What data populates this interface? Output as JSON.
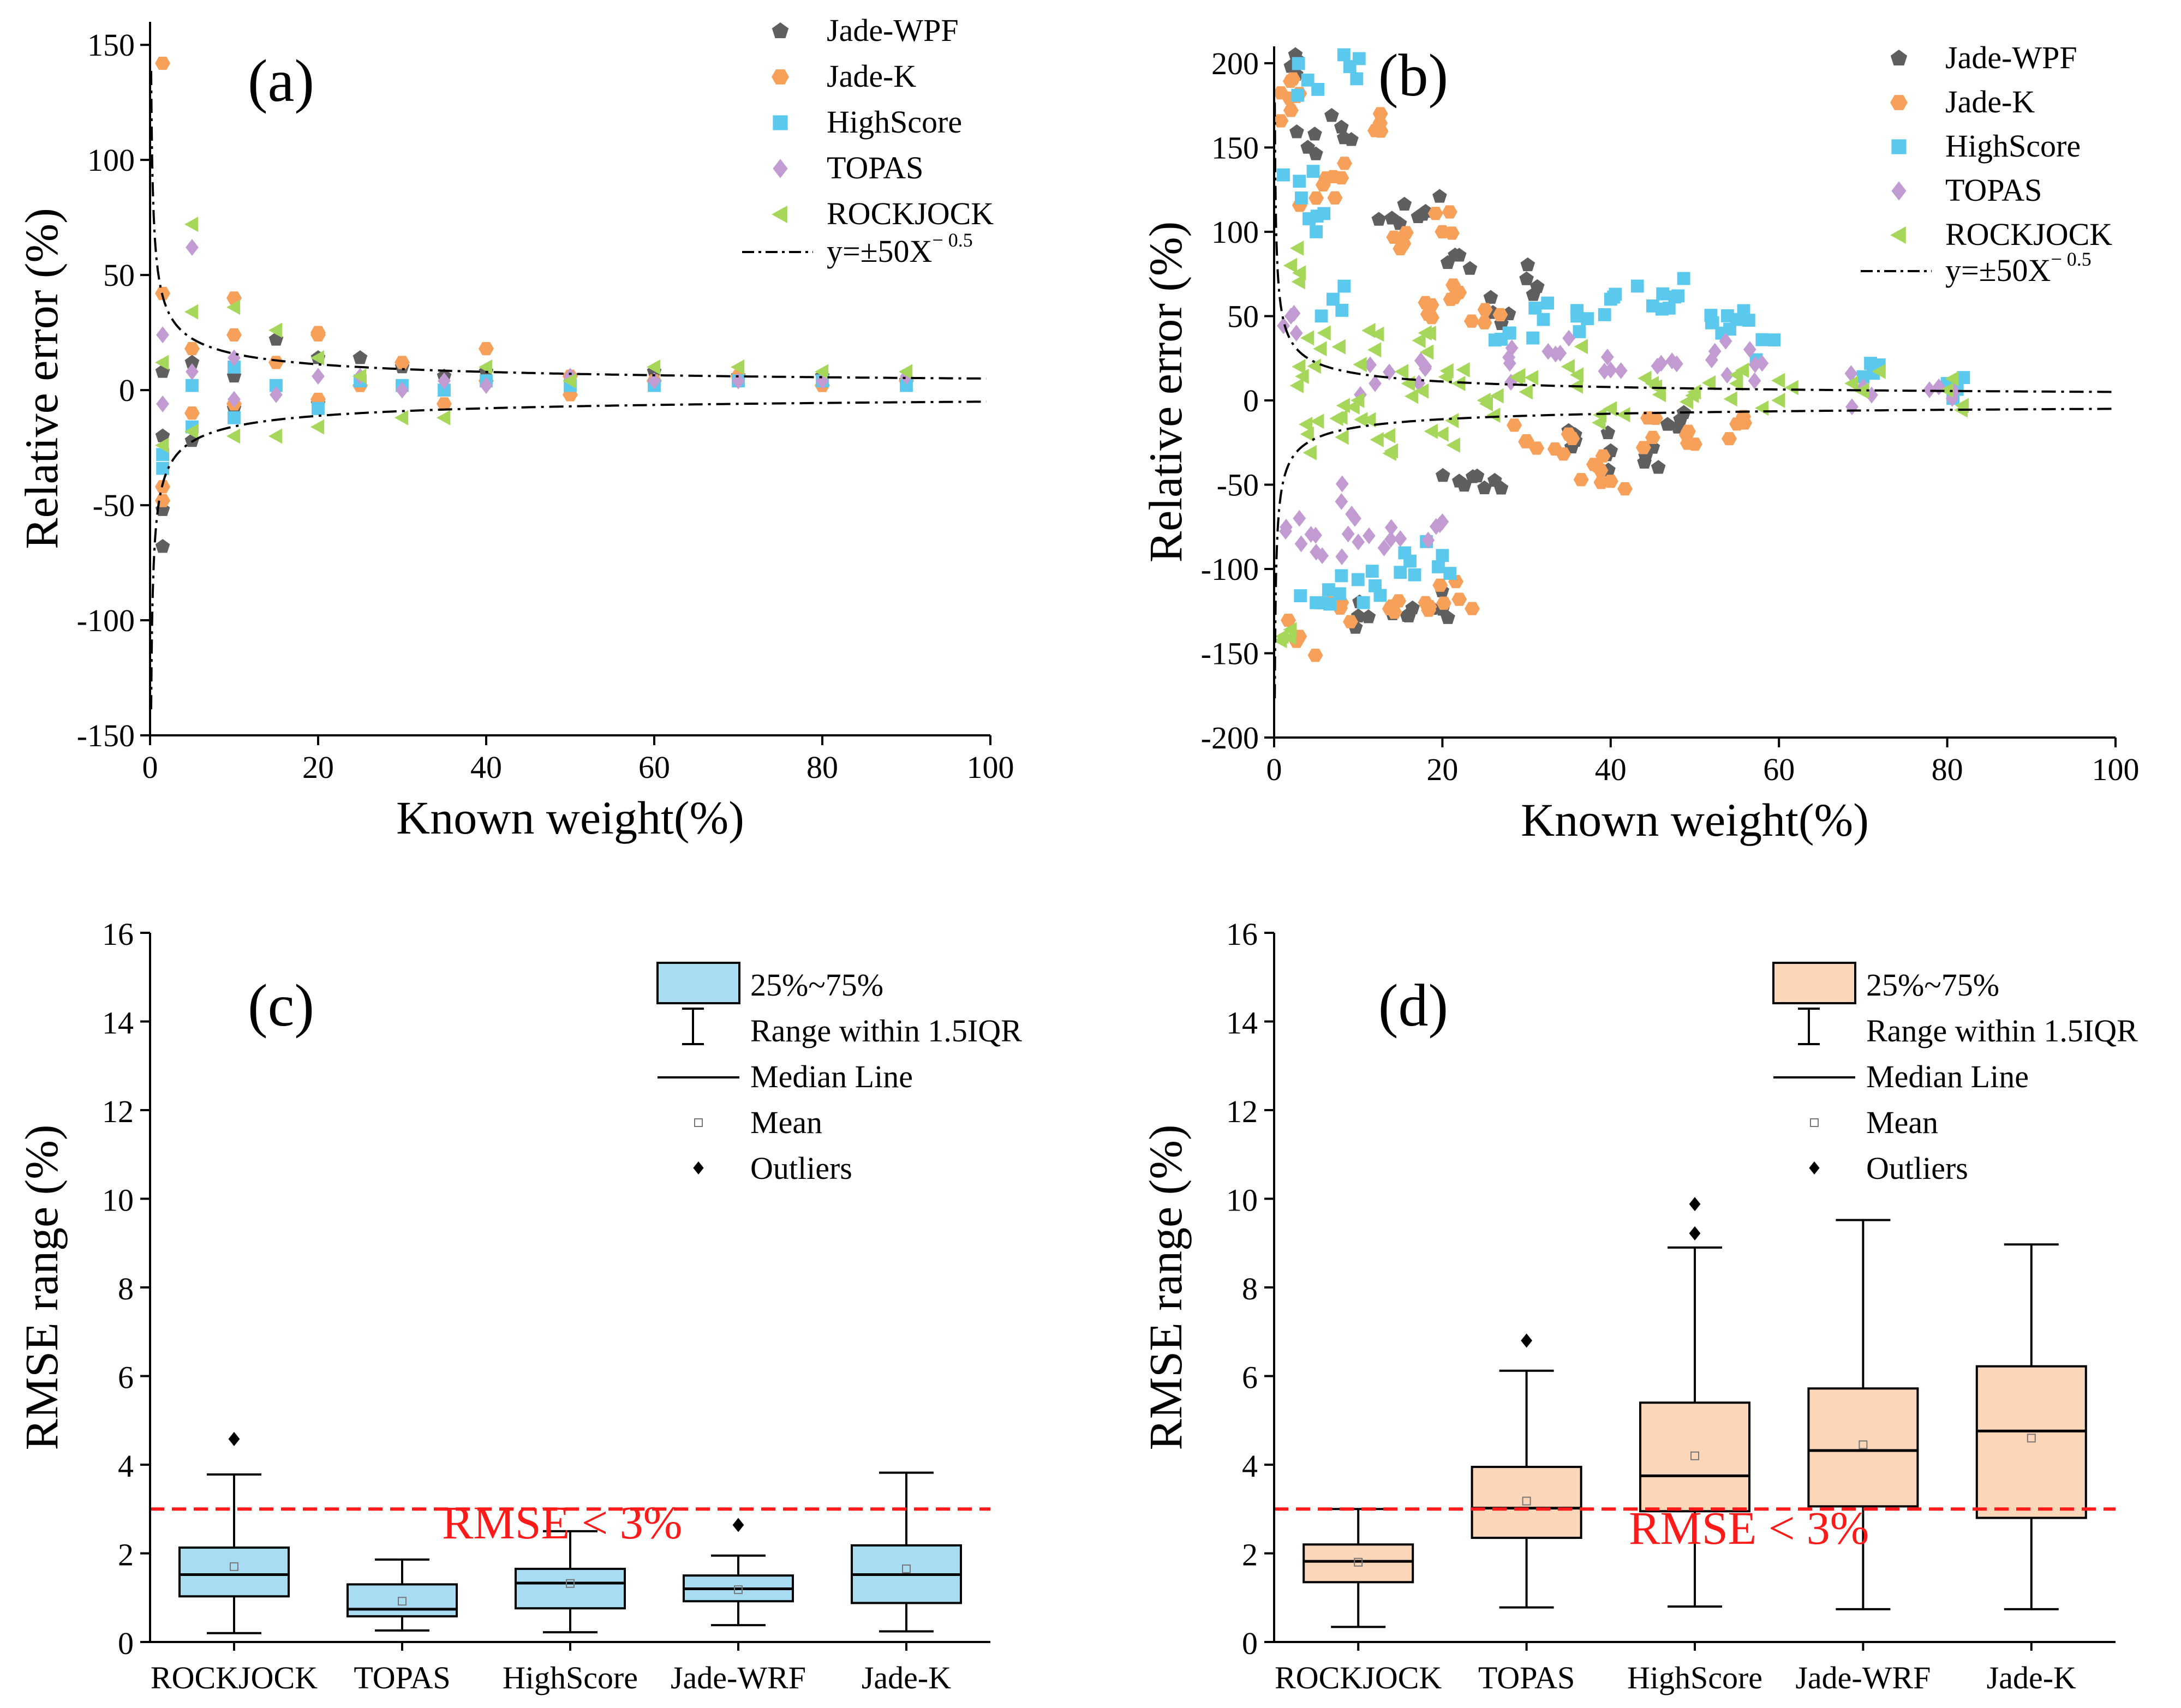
{
  "colors": {
    "jade_wpf": "#5f5f5f",
    "jade_k": "#f6a05a",
    "highscore": "#5bc8ee",
    "topas": "#c39bd3",
    "rockjock": "#a6d75b",
    "box_fill_c": "#a8dcf2",
    "box_fill_d": "#fbd6b8",
    "threshold": "#ff1a1a"
  },
  "chart_data": [
    {
      "panel": "(a)",
      "type": "scatter",
      "xlabel": "Known weight(%)",
      "ylabel": "Relative error (%)",
      "xlim": [
        0,
        100
      ],
      "ylim": [
        -150,
        160
      ],
      "xticks": [
        "0",
        "20",
        "40",
        "60",
        "80",
        "100"
      ],
      "yticks": [
        "-150",
        "-100",
        "-50",
        "0",
        "50",
        "100",
        "150"
      ],
      "legend": [
        "Jade-WPF",
        "Jade-K",
        "HighScore",
        "TOPAS",
        "ROCKJOCK"
      ],
      "curve_label": "y=±50X",
      "curve_exponent": "− 0.5",
      "curve": {
        "a": 50,
        "b": -0.5
      },
      "series": [
        {
          "name": "Jade-WPF",
          "marker": "pentagon",
          "points": [
            [
              1.5,
              -68
            ],
            [
              1.5,
              -52
            ],
            [
              1.5,
              -20
            ],
            [
              1.5,
              8
            ],
            [
              5,
              -22
            ],
            [
              5,
              12
            ],
            [
              10,
              6
            ],
            [
              10,
              -8
            ],
            [
              15,
              22
            ],
            [
              20,
              14
            ],
            [
              20,
              -6
            ],
            [
              25,
              14
            ],
            [
              30,
              10
            ],
            [
              35,
              6
            ],
            [
              40,
              8
            ],
            [
              50,
              6
            ],
            [
              60,
              8
            ],
            [
              70,
              6
            ],
            [
              80,
              6
            ],
            [
              90,
              4
            ]
          ]
        },
        {
          "name": "Jade-K",
          "marker": "hexagon",
          "points": [
            [
              1.5,
              142
            ],
            [
              1.5,
              42
            ],
            [
              1.5,
              -42
            ],
            [
              1.5,
              -48
            ],
            [
              5,
              18
            ],
            [
              5,
              -10
            ],
            [
              10,
              40
            ],
            [
              10,
              24
            ],
            [
              10,
              -6
            ],
            [
              15,
              12
            ],
            [
              20,
              25
            ],
            [
              20,
              24
            ],
            [
              20,
              -4
            ],
            [
              25,
              2
            ],
            [
              30,
              12
            ],
            [
              35,
              -6
            ],
            [
              40,
              18
            ],
            [
              40,
              4
            ],
            [
              50,
              6
            ],
            [
              50,
              -2
            ],
            [
              60,
              4
            ],
            [
              70,
              6
            ],
            [
              80,
              2
            ],
            [
              90,
              4
            ]
          ]
        },
        {
          "name": "HighScore",
          "marker": "square",
          "points": [
            [
              1.5,
              -34
            ],
            [
              1.5,
              -28
            ],
            [
              5,
              2
            ],
            [
              5,
              -16
            ],
            [
              10,
              10
            ],
            [
              10,
              -12
            ],
            [
              15,
              2
            ],
            [
              20,
              -8
            ],
            [
              25,
              4
            ],
            [
              30,
              2
            ],
            [
              35,
              0
            ],
            [
              40,
              4
            ],
            [
              50,
              2
            ],
            [
              60,
              2
            ],
            [
              70,
              4
            ],
            [
              80,
              4
            ],
            [
              90,
              2
            ]
          ]
        },
        {
          "name": "TOPAS",
          "marker": "diamond",
          "points": [
            [
              1.5,
              24
            ],
            [
              1.5,
              -6
            ],
            [
              5,
              62
            ],
            [
              5,
              8
            ],
            [
              10,
              -4
            ],
            [
              10,
              14
            ],
            [
              15,
              -2
            ],
            [
              20,
              6
            ],
            [
              25,
              6
            ],
            [
              30,
              0
            ],
            [
              35,
              4
            ],
            [
              40,
              2
            ],
            [
              50,
              6
            ],
            [
              60,
              4
            ],
            [
              70,
              4
            ],
            [
              80,
              4
            ],
            [
              90,
              6
            ]
          ]
        },
        {
          "name": "ROCKJOCK",
          "marker": "triangle-left",
          "points": [
            [
              1.5,
              12
            ],
            [
              1.5,
              -24
            ],
            [
              5,
              72
            ],
            [
              5,
              34
            ],
            [
              5,
              -18
            ],
            [
              10,
              36
            ],
            [
              10,
              -20
            ],
            [
              15,
              -20
            ],
            [
              15,
              26
            ],
            [
              20,
              14
            ],
            [
              20,
              -16
            ],
            [
              25,
              6
            ],
            [
              30,
              -12
            ],
            [
              35,
              -12
            ],
            [
              40,
              10
            ],
            [
              50,
              4
            ],
            [
              60,
              10
            ],
            [
              70,
              10
            ],
            [
              80,
              8
            ],
            [
              90,
              8
            ]
          ]
        }
      ]
    },
    {
      "panel": "(b)",
      "type": "scatter",
      "xlabel": "Known weight(%)",
      "ylabel": "Relative error (%)",
      "xlim": [
        0,
        100
      ],
      "ylim": [
        -200,
        210
      ],
      "xticks": [
        "0",
        "20",
        "40",
        "60",
        "80",
        "100"
      ],
      "yticks": [
        "-200",
        "-150",
        "-100",
        "-50",
        "0",
        "50",
        "100",
        "150",
        "200"
      ],
      "legend": [
        "Jade-WPF",
        "Jade-K",
        "HighScore",
        "TOPAS",
        "ROCKJOCK"
      ],
      "curve_label": "y=±50X",
      "curve_exponent": "− 0.5",
      "curve": {
        "a": 50,
        "b": -0.5
      },
      "series": [
        {
          "name": "Jade-WPF",
          "marker": "pentagon",
          "points": [
            [
              2,
              198
            ],
            [
              4,
              150
            ],
            [
              8,
              162
            ],
            [
              14,
              108
            ],
            [
              18,
              112
            ],
            [
              22,
              86
            ],
            [
              26,
              52
            ],
            [
              30,
              72
            ],
            [
              35,
              -18
            ],
            [
              40,
              -30
            ],
            [
              45,
              -28
            ],
            [
              10,
              -128
            ],
            [
              16,
              -128
            ],
            [
              20,
              -124
            ],
            [
              22,
              -48
            ],
            [
              25,
              -52
            ],
            [
              48,
              -16
            ]
          ]
        },
        {
          "name": "Jade-K",
          "marker": "hexagon",
          "points": [
            [
              2,
              172
            ],
            [
              3,
              182
            ],
            [
              5,
              120
            ],
            [
              8,
              132
            ],
            [
              12,
              160
            ],
            [
              18,
              58
            ],
            [
              22,
              64
            ],
            [
              25,
              46
            ],
            [
              30,
              -24
            ],
            [
              35,
              -20
            ],
            [
              38,
              -38
            ],
            [
              40,
              -48
            ],
            [
              45,
              -22
            ],
            [
              50,
              -26
            ],
            [
              55,
              -14
            ],
            [
              8,
              -120
            ],
            [
              14,
              -122
            ],
            [
              18,
              -120
            ],
            [
              22,
              -118
            ],
            [
              3,
              -140
            ],
            [
              20,
              100
            ],
            [
              15,
              90
            ]
          ]
        },
        {
          "name": "HighScore",
          "marker": "square",
          "points": [
            [
              3,
              130
            ],
            [
              5,
              100
            ],
            [
              4,
              190
            ],
            [
              9,
              198
            ],
            [
              7,
              60
            ],
            [
              28,
              40
            ],
            [
              32,
              48
            ],
            [
              36,
              50
            ],
            [
              40,
              60
            ],
            [
              45,
              56
            ],
            [
              48,
              62
            ],
            [
              52,
              46
            ],
            [
              55,
              48
            ],
            [
              58,
              36
            ],
            [
              70,
              14
            ],
            [
              80,
              10
            ],
            [
              5,
              -120
            ],
            [
              8,
              -104
            ],
            [
              15,
              -102
            ],
            [
              20,
              -92
            ],
            [
              12,
              -110
            ]
          ]
        },
        {
          "name": "TOPAS",
          "marker": "diamond",
          "points": [
            [
              2,
              50
            ],
            [
              3,
              -70
            ],
            [
              5,
              -90
            ],
            [
              10,
              -84
            ],
            [
              15,
              -82
            ],
            [
              20,
              -72
            ],
            [
              8,
              -60
            ],
            [
              12,
              10
            ],
            [
              18,
              20
            ],
            [
              28,
              22
            ],
            [
              34,
              28
            ],
            [
              40,
              18
            ],
            [
              46,
              22
            ],
            [
              52,
              24
            ],
            [
              58,
              22
            ],
            [
              70,
              8
            ],
            [
              79,
              8
            ]
          ]
        },
        {
          "name": "ROCKJOCK",
          "marker": "triangle-left",
          "points": [
            [
              1,
              -140
            ],
            [
              2,
              80
            ],
            [
              3,
              20
            ],
            [
              4,
              -20
            ],
            [
              6,
              40
            ],
            [
              8,
              -10
            ],
            [
              10,
              0
            ],
            [
              12,
              30
            ],
            [
              14,
              -30
            ],
            [
              16,
              10
            ],
            [
              18,
              40
            ],
            [
              20,
              -20
            ],
            [
              22,
              10
            ],
            [
              25,
              0
            ],
            [
              30,
              5
            ],
            [
              35,
              20
            ],
            [
              40,
              -5
            ],
            [
              45,
              10
            ],
            [
              50,
              5
            ],
            [
              55,
              10
            ],
            [
              60,
              0
            ],
            [
              70,
              6
            ],
            [
              80,
              6
            ]
          ]
        }
      ]
    },
    {
      "panel": "(c)",
      "type": "box",
      "ylabel": "RMSE range  (%)",
      "ylim": [
        0,
        16
      ],
      "yticks": [
        "0",
        "2",
        "4",
        "6",
        "8",
        "10",
        "12",
        "14",
        "16"
      ],
      "categories": [
        "ROCKJOCK",
        "TOPAS",
        "HighScore",
        "Jade-WRF",
        "Jade-K"
      ],
      "threshold": 3,
      "threshold_label": "RMSE < 3%",
      "legend": [
        "25%~75%",
        "Range within 1.5IQR",
        "Median Line",
        "Mean",
        "Outliers"
      ],
      "boxes": [
        {
          "min": 0.2,
          "q1": 1.03,
          "median": 1.52,
          "q3": 2.13,
          "max": 3.78,
          "mean": 1.7,
          "outliers": [
            4.58
          ]
        },
        {
          "min": 0.26,
          "q1": 0.58,
          "median": 0.74,
          "q3": 1.3,
          "max": 1.86,
          "mean": 0.92,
          "outliers": []
        },
        {
          "min": 0.22,
          "q1": 0.76,
          "median": 1.33,
          "q3": 1.65,
          "max": 2.5,
          "mean": 1.32,
          "outliers": []
        },
        {
          "min": 0.38,
          "q1": 0.92,
          "median": 1.2,
          "q3": 1.5,
          "max": 1.95,
          "mean": 1.18,
          "outliers": [
            2.64
          ]
        },
        {
          "min": 0.24,
          "q1": 0.88,
          "median": 1.52,
          "q3": 2.18,
          "max": 3.82,
          "mean": 1.65,
          "outliers": []
        }
      ]
    },
    {
      "panel": "(d)",
      "type": "box",
      "ylabel": "RMSE range  (%)",
      "ylim": [
        0,
        16
      ],
      "yticks": [
        "0",
        "2",
        "4",
        "6",
        "8",
        "10",
        "12",
        "14",
        "16"
      ],
      "categories": [
        "ROCKJOCK",
        "TOPAS",
        "HighScore",
        "Jade-WRF",
        "Jade-K"
      ],
      "threshold": 3,
      "threshold_label": "RMSE < 3%",
      "legend": [
        "25%~75%",
        "Range within 1.5IQR",
        "Median Line",
        "Mean",
        "Outliers"
      ],
      "boxes": [
        {
          "min": 0.34,
          "q1": 1.35,
          "median": 1.82,
          "q3": 2.2,
          "max": 3.0,
          "mean": 1.8,
          "outliers": []
        },
        {
          "min": 0.78,
          "q1": 2.35,
          "median": 3.02,
          "q3": 3.95,
          "max": 6.12,
          "mean": 3.18,
          "outliers": [
            6.8
          ]
        },
        {
          "min": 0.8,
          "q1": 2.95,
          "median": 3.75,
          "q3": 5.4,
          "max": 8.9,
          "mean": 4.2,
          "outliers": [
            9.22,
            9.88
          ]
        },
        {
          "min": 0.74,
          "q1": 3.06,
          "median": 4.32,
          "q3": 5.72,
          "max": 9.52,
          "mean": 4.45,
          "outliers": []
        },
        {
          "min": 0.74,
          "q1": 2.8,
          "median": 4.76,
          "q3": 6.22,
          "max": 8.97,
          "mean": 4.6,
          "outliers": []
        }
      ]
    }
  ]
}
